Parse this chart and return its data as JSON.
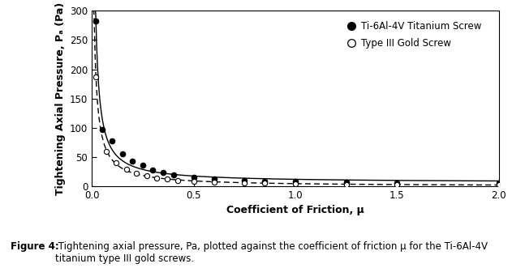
{
  "xlabel": "Coefficient of Friction, μ",
  "ylabel": "Tightening Axial Pressure, Pₐ (Pa)",
  "xlim": [
    0.0,
    2.0
  ],
  "ylim": [
    0,
    300
  ],
  "yticks": [
    0,
    50,
    100,
    150,
    200,
    250,
    300
  ],
  "xticks": [
    0.0,
    0.5,
    1.0,
    1.5,
    2.0
  ],
  "legend_labels": [
    "Ti-6Al-4V Titanium Screw",
    "Type III Gold Screw"
  ],
  "caption_bold": "Figure 4:",
  "caption_normal": " Tightening axial pressure, Pa, plotted against the coefficient of friction μ for the Ti-6Al-4V titanium type III gold screws.",
  "s1_x": [
    0.02,
    0.05,
    0.1,
    0.15,
    0.2,
    0.25,
    0.3,
    0.35,
    0.4,
    0.5,
    0.6,
    0.75,
    0.85,
    1.0,
    1.25,
    1.5,
    2.0
  ],
  "s1_y": [
    282,
    97,
    78,
    56,
    43,
    36,
    28,
    23,
    20,
    15,
    12,
    10,
    9,
    8,
    7,
    6,
    5
  ],
  "s2_x": [
    0.02,
    0.07,
    0.12,
    0.17,
    0.22,
    0.27,
    0.32,
    0.37,
    0.42,
    0.5,
    0.6,
    0.75,
    0.85,
    1.0,
    1.25,
    1.5,
    2.0
  ],
  "s2_y": [
    187,
    60,
    40,
    29,
    22,
    18,
    14,
    12,
    10,
    8,
    7,
    5.5,
    5,
    4.5,
    3.5,
    3,
    2.5
  ],
  "line_color": "#000000",
  "bg_color": "#ffffff"
}
